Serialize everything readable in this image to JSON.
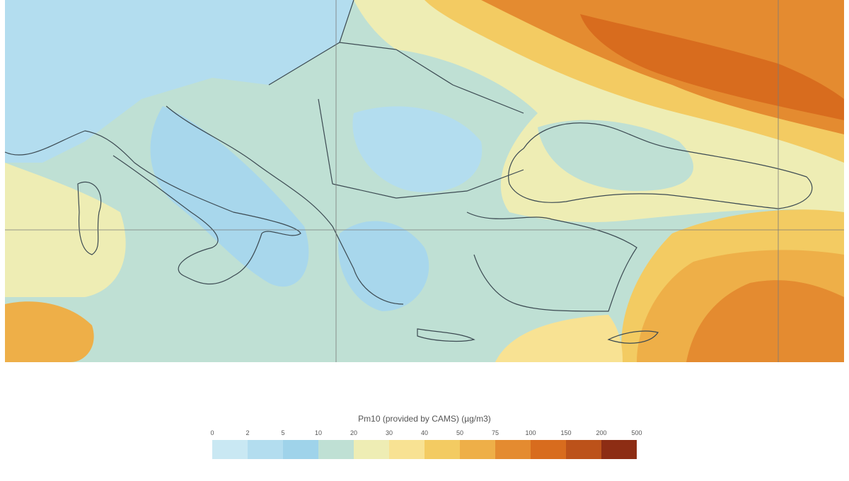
{
  "legend": {
    "title": "Pm10 (provided by CAMS) (µg/m3)",
    "ticks": [
      0,
      2,
      5,
      10,
      20,
      30,
      40,
      50,
      75,
      100,
      150,
      200,
      500
    ],
    "colors": [
      "#c9e8f3",
      "#b3ddef",
      "#9fd3ea",
      "#bfe0d4",
      "#eeedb4",
      "#f8e293",
      "#f3cb62",
      "#eeaf48",
      "#e48b30",
      "#d86c1e",
      "#bc521a",
      "#8d2d14"
    ]
  }
}
